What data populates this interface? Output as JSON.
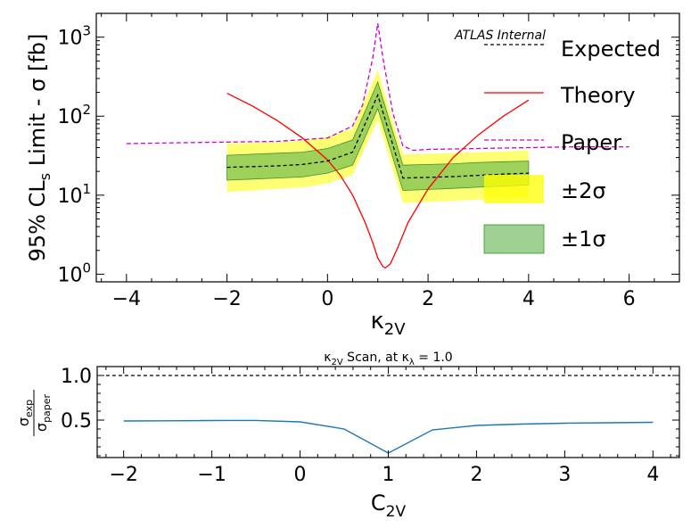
{
  "chart_data": [
    {
      "type": "line",
      "subtype": "limit-scan",
      "title": "",
      "watermark": "ATLAS Internal",
      "xlabel": {
        "base": "κ",
        "sub": "2V"
      },
      "ylabel": {
        "pre": "95% CL",
        "sub": "s",
        "post": " Limit - σ [fb]"
      },
      "y_scale": "log",
      "xlim": [
        -4.6,
        7.0
      ],
      "ylim": [
        0.8,
        2000
      ],
      "x_ticks": [
        -4,
        -2,
        0,
        2,
        4,
        6
      ],
      "x_tick_labels": [
        "−4",
        "−2",
        "0",
        "2",
        "4",
        "6"
      ],
      "y_ticks": [
        1,
        10,
        100,
        1000
      ],
      "y_tick_labels": [
        {
          "base": "10",
          "exp": "0"
        },
        {
          "base": "10",
          "exp": "1"
        },
        {
          "base": "10",
          "exp": "2"
        },
        {
          "base": "10",
          "exp": "3"
        }
      ],
      "grid": false,
      "legend_position": "right",
      "legend": [
        {
          "label": "Expected",
          "style": "black-dashed"
        },
        {
          "label": "Theory",
          "style": "red-solid"
        },
        {
          "label": "Paper",
          "style": "magenta-dashed"
        },
        {
          "label": "±2σ",
          "style": "yellow-band"
        },
        {
          "label": "±1σ",
          "style": "green-band"
        }
      ],
      "colors": {
        "expected": "#000000",
        "theory": "#ff0000",
        "paper": "#cc00cc",
        "band2": "#ffff00",
        "band1": "#5db347"
      },
      "x": [
        -2,
        -1.5,
        -1,
        -0.5,
        0,
        0.5,
        1,
        1.5,
        2,
        2.5,
        3,
        3.5,
        4
      ],
      "expected": [
        22.5,
        23,
        23.5,
        24.5,
        27,
        35,
        185,
        16.5,
        16.8,
        17.2,
        17.8,
        18.5,
        19
      ],
      "band_1sigma": {
        "low": [
          15.5,
          16,
          16.5,
          17,
          19,
          24,
          125,
          11.5,
          11.8,
          12.2,
          12.6,
          13,
          13.5
        ],
        "high": [
          32,
          33,
          34,
          35,
          39,
          50,
          270,
          24,
          24.5,
          25,
          26,
          26.5,
          27
        ]
      },
      "band_2sigma": {
        "low": [
          11,
          11.5,
          12,
          12.5,
          14,
          18,
          90,
          8,
          8.2,
          8.5,
          8.8,
          9.1,
          9.5
        ],
        "high": [
          45,
          46,
          47,
          49,
          55,
          70,
          380,
          33,
          33.5,
          34,
          35,
          36,
          37
        ]
      },
      "paper": {
        "x": [
          -4,
          -3,
          -2,
          -1,
          0,
          0.5,
          0.7,
          0.9,
          1.0,
          1.1,
          1.3,
          1.5,
          1.7,
          2,
          3,
          4,
          5,
          6
        ],
        "y": [
          45,
          46,
          47,
          48,
          53,
          75,
          140,
          550,
          1500,
          550,
          110,
          42,
          37,
          38,
          39,
          40,
          41,
          41
        ]
      },
      "theory": {
        "x": [
          -2,
          -1.5,
          -1,
          -0.5,
          0,
          0.25,
          0.5,
          0.75,
          0.9,
          1.0,
          1.1,
          1.15,
          1.25,
          1.4,
          1.6,
          2,
          2.5,
          3,
          3.5,
          4
        ],
        "y": [
          195,
          135,
          88,
          53,
          28,
          18,
          10,
          4.5,
          2.5,
          1.6,
          1.25,
          1.2,
          1.35,
          2.2,
          4.5,
          12,
          30,
          58,
          100,
          160
        ]
      }
    },
    {
      "type": "line",
      "title": {
        "pre": "κ",
        "sub1": "2V",
        "mid": " Scan, at κ",
        "sub2": "λ",
        "post": " = 1.0"
      },
      "xlabel": {
        "base": "C",
        "sub": "2V"
      },
      "ylabel": {
        "num": "σ",
        "num_sub": "exp",
        "den": "σ",
        "den_sub": "paper"
      },
      "xlim": [
        -2.3,
        4.3
      ],
      "ylim": [
        0.08,
        1.1
      ],
      "x_ticks": [
        -2,
        -1,
        0,
        1,
        2,
        3,
        4
      ],
      "x_tick_labels": [
        "−2",
        "−1",
        "0",
        "1",
        "2",
        "3",
        "4"
      ],
      "y_ticks": [
        0.5,
        1.0
      ],
      "y_tick_labels": [
        "0.5",
        "1.0"
      ],
      "grid": false,
      "reference_line": 1.0,
      "colors": {
        "ratio": "#1f77b4",
        "reference": "#000000"
      },
      "x": [
        -2,
        -1.5,
        -1,
        -0.5,
        0,
        0.5,
        1,
        1.5,
        2,
        2.5,
        3,
        3.5,
        4
      ],
      "ratio": [
        0.49,
        0.492,
        0.495,
        0.496,
        0.48,
        0.4,
        0.13,
        0.39,
        0.44,
        0.455,
        0.465,
        0.47,
        0.475
      ]
    }
  ]
}
